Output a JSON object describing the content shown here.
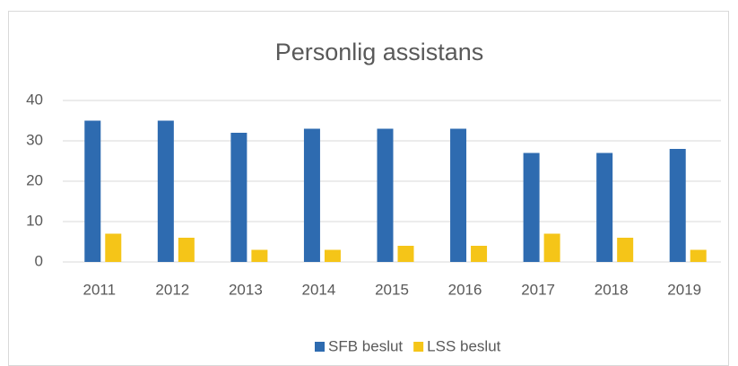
{
  "chart_data": {
    "type": "bar",
    "title": "Personlig assistans",
    "categories": [
      "2011",
      "2012",
      "2013",
      "2014",
      "2015",
      "2016",
      "2017",
      "2018",
      "2019"
    ],
    "series": [
      {
        "name": "SFB beslut",
        "color": "#2e6bb0",
        "values": [
          35,
          35,
          32,
          33,
          33,
          33,
          27,
          27,
          28
        ]
      },
      {
        "name": "LSS beslut",
        "color": "#f5c518",
        "values": [
          7,
          6,
          3,
          3,
          4,
          4,
          7,
          6,
          3
        ]
      }
    ],
    "ylim": [
      0,
      40
    ],
    "yticks": [
      0,
      10,
      20,
      30,
      40
    ],
    "grid": true,
    "legend": "bottom"
  }
}
